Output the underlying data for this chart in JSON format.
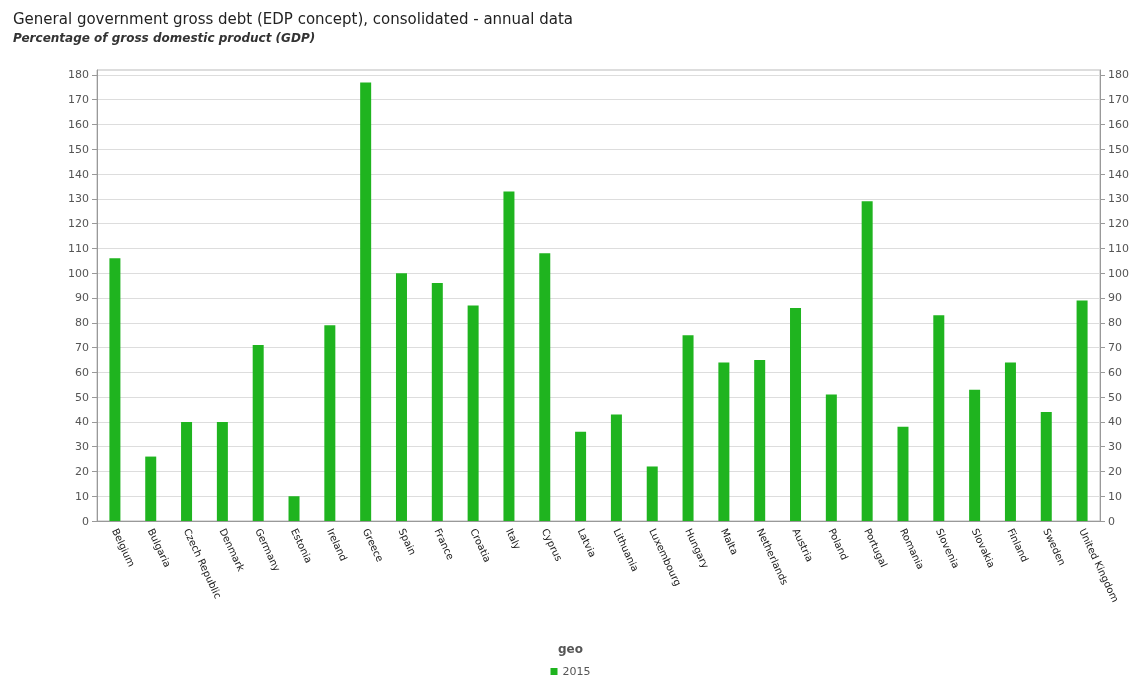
{
  "chart_data": {
    "type": "bar",
    "title": "General government gross debt (EDP concept), consolidated - annual data",
    "subtitle": "Percentage of gross domestic product (GDP)",
    "categories": [
      "Belgium",
      "Bulgaria",
      "Czech Republic",
      "Denmark",
      "Germany",
      "Estonia",
      "Ireland",
      "Greece",
      "Spain",
      "France",
      "Croatia",
      "Italy",
      "Cyprus",
      "Latvia",
      "Lithuania",
      "Luxembourg",
      "Hungary",
      "Malta",
      "Netherlands",
      "Austria",
      "Poland",
      "Portugal",
      "Romania",
      "Slovenia",
      "Slovakia",
      "Finland",
      "Sweden",
      "United Kingdom"
    ],
    "series": [
      {
        "name": "2015",
        "color": "#1fb41f",
        "values": [
          106,
          26,
          40,
          40,
          71,
          10,
          79,
          177,
          100,
          96,
          87,
          133,
          108,
          36,
          43,
          22,
          75,
          64,
          65,
          86,
          51,
          129,
          38,
          83,
          53,
          64,
          44,
          89
        ]
      }
    ],
    "ylim": [
      0,
      182
    ],
    "yticks": [
      0,
      10,
      20,
      30,
      40,
      50,
      60,
      70,
      80,
      90,
      100,
      110,
      120,
      130,
      140,
      150,
      160,
      170,
      180
    ],
    "y2lim": [
      0,
      182
    ],
    "y2ticks": [
      0,
      10,
      20,
      30,
      40,
      50,
      60,
      70,
      80,
      90,
      100,
      110,
      120,
      130,
      140,
      150,
      160,
      170,
      180
    ],
    "legend_title": "geo",
    "legend": "bottom",
    "grid": "y"
  }
}
